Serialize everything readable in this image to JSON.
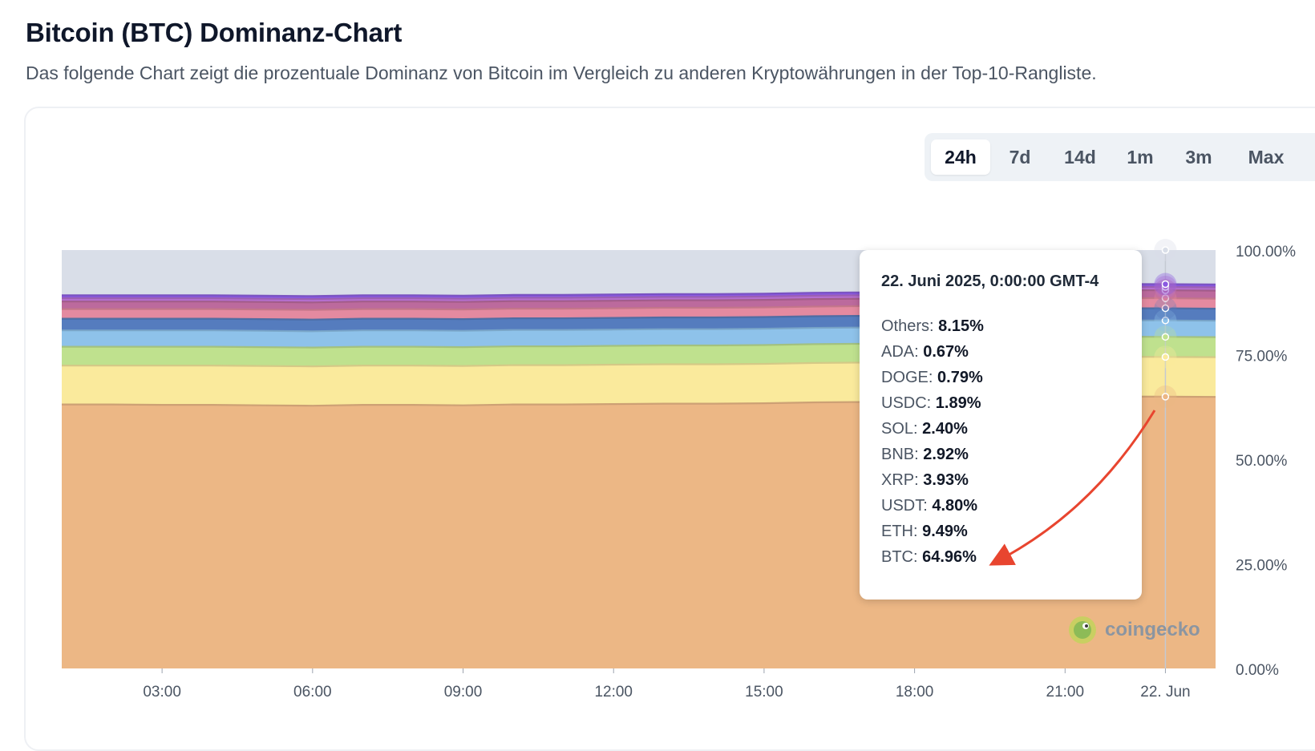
{
  "header": {
    "title": "Bitcoin (BTC) Dominanz-Chart",
    "subtitle": "Das folgende Chart zeigt die prozentuale Dominanz von Bitcoin im Vergleich zu anderen Kryptowährungen in der Top-10-Rangliste."
  },
  "range_tabs": [
    {
      "label": "24h",
      "active": true
    },
    {
      "label": "7d",
      "active": false
    },
    {
      "label": "14d",
      "active": false
    },
    {
      "label": "1m",
      "active": false
    },
    {
      "label": "3m",
      "active": false
    },
    {
      "label": "Max",
      "active": false
    }
  ],
  "tooltip": {
    "date": "22. Juni 2025, 0:00:00 GMT-4",
    "rows": [
      {
        "name": "Others",
        "value": "8.15%"
      },
      {
        "name": "ADA",
        "value": "0.67%"
      },
      {
        "name": "DOGE",
        "value": "0.79%"
      },
      {
        "name": "USDC",
        "value": "1.89%"
      },
      {
        "name": "SOL",
        "value": "2.40%"
      },
      {
        "name": "BNB",
        "value": "2.92%"
      },
      {
        "name": "XRP",
        "value": "3.93%"
      },
      {
        "name": "USDT",
        "value": "4.80%"
      },
      {
        "name": "ETH",
        "value": "9.49%"
      },
      {
        "name": "BTC",
        "value": "64.96%"
      }
    ]
  },
  "watermark": {
    "text": "coingecko"
  },
  "colors": {
    "BTC": "#ecb785",
    "ETH": "#faea9c",
    "USDT": "#bfe18e",
    "XRP": "#8ec2ea",
    "BNB": "#557cbe",
    "SOL": "#e48aa0",
    "USDC": "#bc6a9d",
    "DOGE": "#b56fcf",
    "ADA": "#8a5ae0",
    "Others": "#d9dee8",
    "annotation": "#e8452f"
  },
  "chart_data": {
    "type": "area",
    "stacked": true,
    "x": [
      "01:00",
      "02:00",
      "03:00",
      "04:00",
      "05:00",
      "06:00",
      "07:00",
      "08:00",
      "09:00",
      "10:00",
      "11:00",
      "12:00",
      "13:00",
      "14:00",
      "15:00",
      "16:00",
      "17:00",
      "18:00",
      "19:00",
      "20:00",
      "21:00",
      "22:00",
      "22. Jun",
      "00:10"
    ],
    "x_ticks": [
      "03:00",
      "06:00",
      "09:00",
      "12:00",
      "15:00",
      "18:00",
      "21:00",
      "22. Jun"
    ],
    "y_ticks": [
      "0.00%",
      "25.00%",
      "50.00%",
      "75.00%",
      "100.00%"
    ],
    "ylim": [
      0,
      100
    ],
    "series": [
      {
        "name": "BTC",
        "values": [
          63.1,
          63.1,
          63.0,
          63.0,
          62.9,
          62.8,
          63.0,
          63.0,
          62.9,
          63.1,
          63.1,
          63.2,
          63.3,
          63.3,
          63.4,
          63.6,
          63.7,
          64.7,
          64.9,
          65.1,
          65.1,
          65.0,
          64.96,
          64.9
        ]
      },
      {
        "name": "ETH",
        "values": [
          9.3,
          9.3,
          9.4,
          9.4,
          9.4,
          9.4,
          9.4,
          9.4,
          9.4,
          9.4,
          9.4,
          9.4,
          9.4,
          9.4,
          9.4,
          9.4,
          9.4,
          9.5,
          9.5,
          9.5,
          9.5,
          9.5,
          9.49,
          9.5
        ]
      },
      {
        "name": "USDT",
        "values": [
          4.5,
          4.5,
          4.5,
          4.5,
          4.5,
          4.5,
          4.5,
          4.5,
          4.5,
          4.5,
          4.5,
          4.5,
          4.5,
          4.5,
          4.5,
          4.5,
          4.5,
          4.7,
          4.8,
          4.8,
          4.8,
          4.8,
          4.8,
          4.8
        ]
      },
      {
        "name": "XRP",
        "values": [
          3.9,
          3.9,
          3.9,
          3.9,
          3.9,
          3.9,
          3.9,
          3.9,
          3.9,
          3.9,
          3.9,
          3.9,
          3.9,
          3.9,
          3.9,
          3.9,
          3.9,
          3.9,
          3.9,
          3.9,
          3.9,
          3.9,
          3.93,
          3.9
        ]
      },
      {
        "name": "BNB",
        "values": [
          2.8,
          2.8,
          2.8,
          2.8,
          2.8,
          2.8,
          2.8,
          2.8,
          2.8,
          2.8,
          2.8,
          2.8,
          2.8,
          2.8,
          2.8,
          2.8,
          2.8,
          2.9,
          2.9,
          2.9,
          2.9,
          2.9,
          2.92,
          2.9
        ]
      },
      {
        "name": "SOL",
        "values": [
          2.3,
          2.3,
          2.3,
          2.3,
          2.3,
          2.3,
          2.3,
          2.3,
          2.3,
          2.3,
          2.3,
          2.3,
          2.3,
          2.3,
          2.3,
          2.3,
          2.3,
          2.4,
          2.4,
          2.4,
          2.4,
          2.4,
          2.4,
          2.4
        ]
      },
      {
        "name": "USDC",
        "values": [
          1.8,
          1.8,
          1.8,
          1.8,
          1.8,
          1.8,
          1.8,
          1.8,
          1.8,
          1.8,
          1.8,
          1.8,
          1.8,
          1.8,
          1.8,
          1.8,
          1.8,
          1.9,
          1.9,
          1.9,
          1.9,
          1.9,
          1.89,
          1.9
        ]
      },
      {
        "name": "DOGE",
        "values": [
          0.8,
          0.8,
          0.8,
          0.8,
          0.8,
          0.8,
          0.8,
          0.8,
          0.8,
          0.8,
          0.8,
          0.8,
          0.8,
          0.8,
          0.8,
          0.8,
          0.8,
          0.8,
          0.8,
          0.8,
          0.8,
          0.8,
          0.79,
          0.8
        ]
      },
      {
        "name": "ADA",
        "values": [
          0.7,
          0.7,
          0.7,
          0.7,
          0.7,
          0.7,
          0.7,
          0.7,
          0.7,
          0.7,
          0.7,
          0.7,
          0.7,
          0.7,
          0.7,
          0.7,
          0.7,
          0.7,
          0.7,
          0.7,
          0.7,
          0.7,
          0.67,
          0.7
        ]
      },
      {
        "name": "Others",
        "values": [
          10.8,
          10.8,
          10.8,
          10.8,
          10.9,
          11.0,
          10.8,
          10.8,
          10.9,
          10.7,
          10.7,
          10.6,
          10.5,
          10.5,
          10.4,
          10.2,
          10.1,
          8.5,
          8.2,
          8.0,
          8.0,
          8.1,
          8.15,
          8.2
        ]
      }
    ],
    "hover_index": 22
  }
}
